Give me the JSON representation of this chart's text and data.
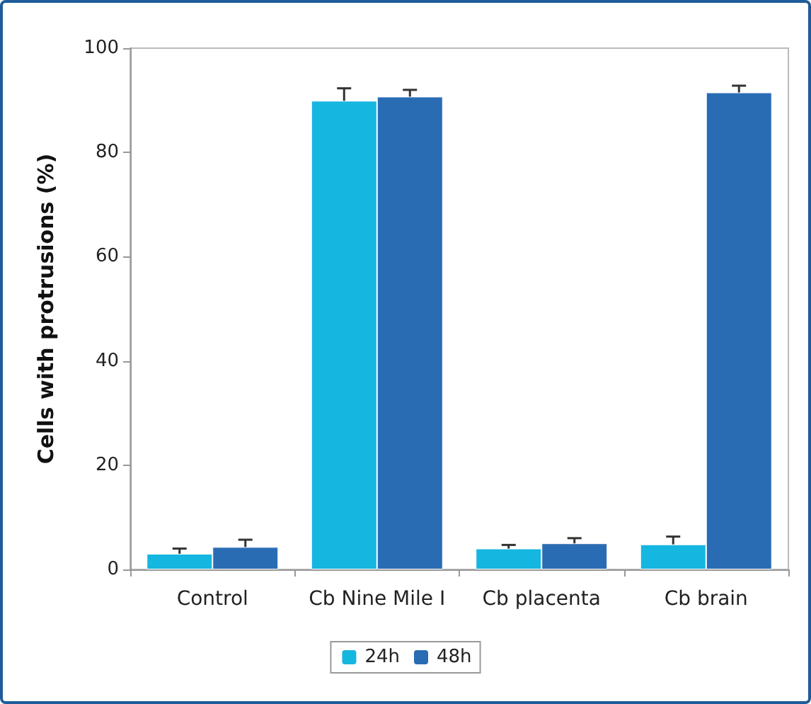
{
  "chart_data": {
    "type": "bar",
    "ylabel": "Cells with protrusions (%)",
    "categories": [
      "Control",
      "Cb Nine Mile I",
      "Cb placenta",
      "Cb brain"
    ],
    "series": [
      {
        "name": "24h",
        "color": "#15b6e0",
        "values": [
          3.0,
          89.9,
          4.0,
          4.8
        ],
        "errors": [
          [
            3.0,
            4.0
          ],
          [
            89.9,
            92.3
          ],
          [
            4.0,
            4.7
          ],
          [
            4.8,
            6.3
          ]
        ]
      },
      {
        "name": "48h",
        "color": "#2a6cb4",
        "values": [
          4.3,
          90.7,
          5.0,
          91.5
        ],
        "errors": [
          [
            4.3,
            5.7
          ],
          [
            90.7,
            92.0
          ],
          [
            5.0,
            6.0
          ],
          [
            91.5,
            92.8
          ]
        ]
      }
    ],
    "ylim": [
      0,
      100
    ],
    "yticks": [
      0,
      20,
      40,
      60,
      80,
      100
    ],
    "grid": false,
    "legend": "bottom"
  }
}
